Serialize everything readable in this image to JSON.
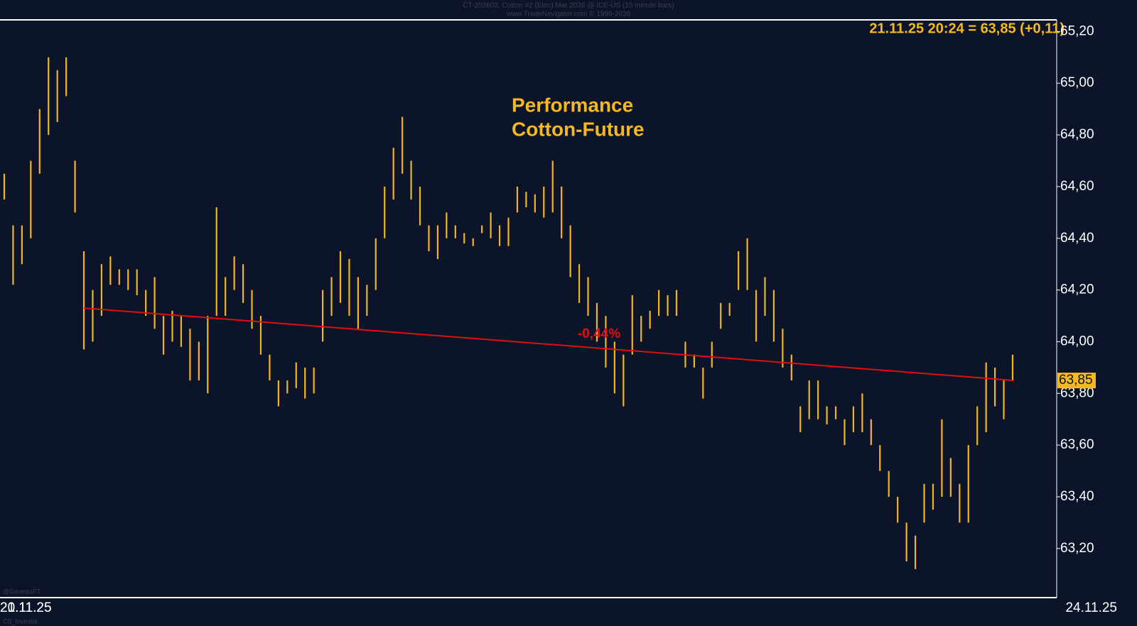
{
  "chart_data": {
    "type": "hilo",
    "header": [
      "CT-202603: Cotton #2 (Elec) Mar 2026 @ ICE-US (15 minute bars)",
      "www.TradeNavigator.com © 1999-2026"
    ],
    "title": [
      "Performance",
      "Cotton-Future"
    ],
    "quote": "21.11.25 20:24 = 63,85 (+0,11)",
    "footer": [
      "@GenesisFT",
      "CS_Investor"
    ],
    "x_labels": [
      "20.11.25",
      "21.11.25",
      "24.11.25"
    ],
    "color": "#f2b51f",
    "high": [
      64.65,
      64.45,
      64.45,
      64.7,
      64.9,
      65.1,
      65.05,
      65.1,
      64.7,
      64.35,
      64.2,
      64.3,
      64.33,
      64.28,
      64.28,
      64.28,
      64.2,
      64.25,
      64.1,
      64.12,
      64.1,
      64.05,
      64.0,
      64.1,
      64.52,
      64.25,
      64.33,
      64.3,
      64.2,
      64.1,
      63.95,
      63.85,
      63.85,
      63.92,
      63.9,
      63.9,
      64.2,
      64.25,
      64.35,
      64.32,
      64.25,
      64.22,
      64.4,
      64.6,
      64.75,
      64.87,
      64.7,
      64.6,
      64.45,
      64.45,
      64.5,
      64.45,
      64.42,
      64.4,
      64.45,
      64.5,
      64.45,
      64.48,
      64.6,
      64.58,
      64.57,
      64.6,
      64.7,
      64.6,
      64.45,
      64.3,
      64.25,
      64.15,
      64.1,
      64.0,
      63.95,
      64.18,
      64.1,
      64.12,
      64.2,
      64.18,
      64.2,
      64.0,
      63.95,
      63.9,
      64.0,
      64.15,
      64.15,
      64.35,
      64.4,
      64.2,
      64.25,
      64.2,
      64.05,
      63.95,
      63.75,
      63.85,
      63.85,
      63.75,
      63.75,
      63.7,
      63.75,
      63.8,
      63.7,
      63.6,
      63.5,
      63.4,
      63.3,
      63.25,
      63.45,
      63.45,
      63.7,
      63.55,
      63.45,
      63.6,
      63.75,
      63.92,
      63.9,
      63.85,
      63.95
    ],
    "low": [
      64.55,
      64.22,
      64.3,
      64.4,
      64.65,
      64.8,
      64.85,
      64.95,
      64.5,
      63.97,
      64.0,
      64.1,
      64.22,
      64.22,
      64.2,
      64.18,
      64.1,
      64.05,
      63.95,
      64.0,
      63.98,
      63.85,
      63.85,
      63.8,
      64.1,
      64.1,
      64.2,
      64.15,
      64.05,
      63.95,
      63.85,
      63.75,
      63.8,
      63.82,
      63.78,
      63.8,
      64.0,
      64.1,
      64.15,
      64.1,
      64.05,
      64.1,
      64.2,
      64.4,
      64.55,
      64.65,
      64.55,
      64.45,
      64.35,
      64.32,
      64.4,
      64.4,
      64.38,
      64.37,
      64.42,
      64.4,
      64.37,
      64.37,
      64.5,
      64.52,
      64.5,
      64.48,
      64.5,
      64.4,
      64.25,
      64.15,
      64.1,
      64.0,
      63.9,
      63.8,
      63.75,
      63.95,
      64.0,
      64.05,
      64.1,
      64.1,
      64.1,
      63.9,
      63.9,
      63.78,
      63.9,
      64.05,
      64.1,
      64.2,
      64.2,
      64.0,
      64.1,
      64.0,
      63.9,
      63.85,
      63.65,
      63.7,
      63.7,
      63.68,
      63.7,
      63.6,
      63.65,
      63.65,
      63.6,
      63.5,
      63.4,
      63.3,
      63.15,
      63.12,
      63.3,
      63.35,
      63.4,
      63.4,
      63.3,
      63.3,
      63.6,
      63.65,
      63.75,
      63.7,
      63.85
    ],
    "trendline": {
      "start": 64.13,
      "end": 63.85,
      "color": "#e01010",
      "label": "-0,44%"
    },
    "last": {
      "value": 63.85,
      "label": "63,85"
    },
    "ylim": [
      63.01,
      65.245
    ],
    "yticks": [
      {
        "value": 63.2,
        "label": "63,20"
      },
      {
        "value": 63.4,
        "label": "63,40"
      },
      {
        "value": 63.6,
        "label": "63,60"
      },
      {
        "value": 63.8,
        "label": "63,80"
      },
      {
        "value": 64.0,
        "label": "64,00"
      },
      {
        "value": 64.2,
        "label": "64,20"
      },
      {
        "value": 64.4,
        "label": "64,40"
      },
      {
        "value": 64.6,
        "label": "64,60"
      },
      {
        "value": 64.8,
        "label": "64,80"
      },
      {
        "value": 65.0,
        "label": "65,00"
      },
      {
        "value": 65.2,
        "label": "65,20"
      }
    ]
  }
}
